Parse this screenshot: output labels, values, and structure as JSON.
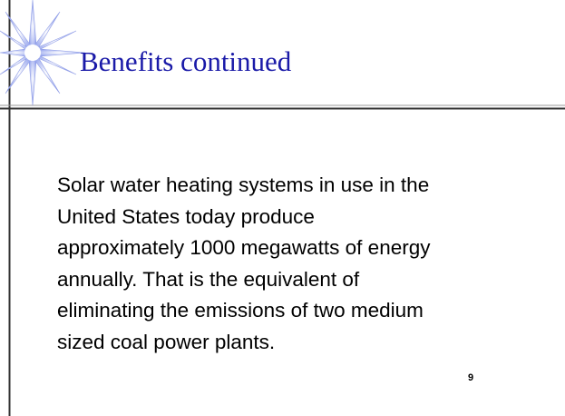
{
  "slide": {
    "title": "Benefits continued",
    "body_lines": [
      "Solar water heating systems in use in the",
      "United States today produce",
      "approximately 1000 megawatts of energy",
      "annually.  That is the equivalent of",
      "eliminating the emissions of two medium",
      "sized coal power plants."
    ],
    "page_number": "9"
  }
}
